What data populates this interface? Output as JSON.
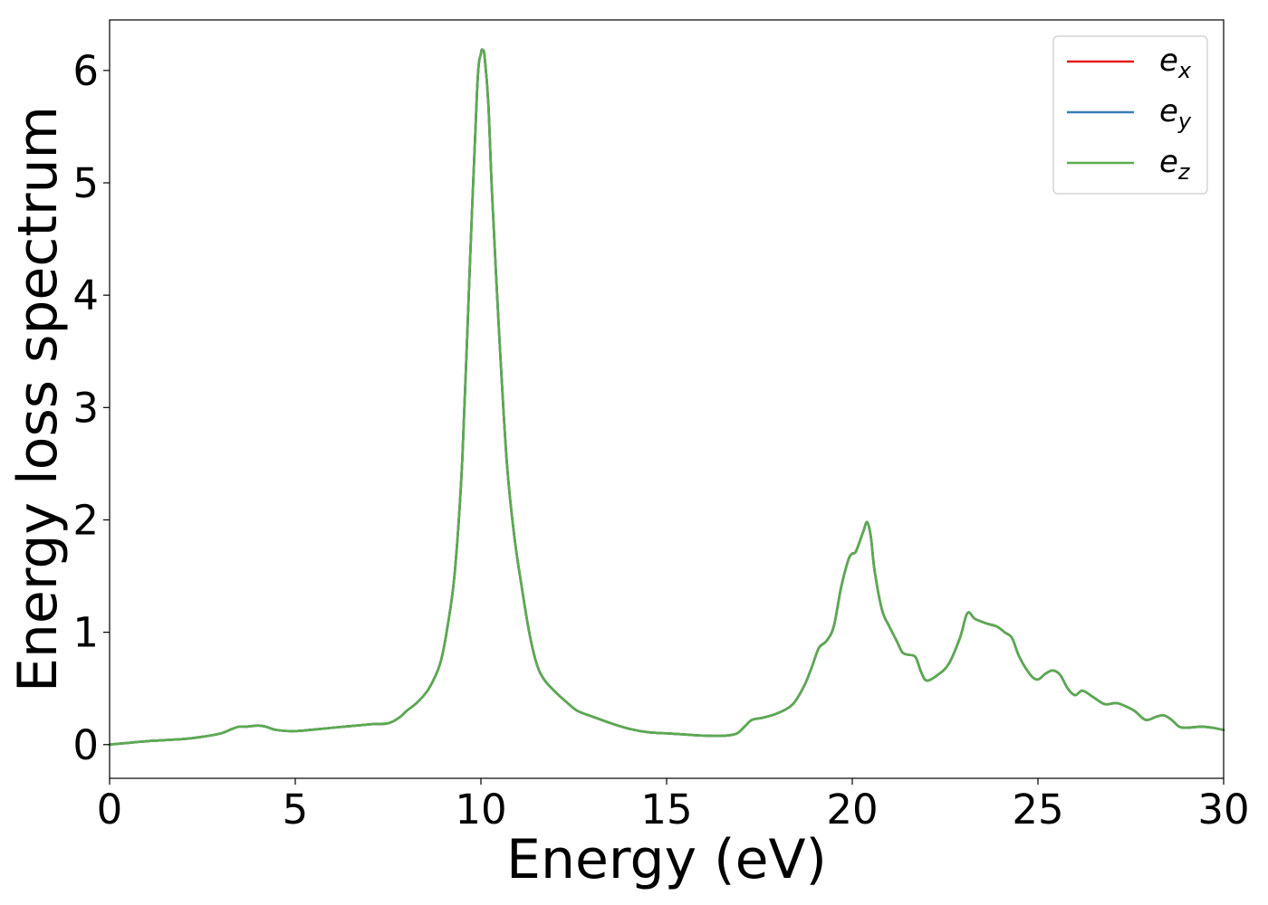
{
  "chart_data": {
    "type": "line",
    "title": "",
    "xlabel": "Energy (eV)",
    "ylabel": "Energy loss spectrum",
    "xlim": [
      0,
      30
    ],
    "ylim": [
      -0.3,
      6.45
    ],
    "xticks": [
      0,
      5,
      10,
      15,
      20,
      25,
      30
    ],
    "yticks": [
      0,
      1,
      2,
      3,
      4,
      5,
      6
    ],
    "grid": false,
    "legend_position": "top-right",
    "series": [
      {
        "name": "e_x",
        "legend_base": "e",
        "legend_sub": "x",
        "color": "#e41a1c",
        "x": [
          0,
          1,
          2,
          2.5,
          3,
          3.3,
          3.5,
          3.7,
          4.0,
          4.2,
          4.5,
          5.0,
          6.0,
          7.0,
          7.5,
          7.8,
          8.0,
          8.3,
          8.6,
          8.9,
          9.1,
          9.3,
          9.5,
          9.7,
          9.9,
          10.0,
          10.05,
          10.1,
          10.2,
          10.3,
          10.5,
          10.7,
          10.9,
          11.1,
          11.3,
          11.5,
          11.7,
          12.0,
          12.3,
          12.6,
          13.0,
          13.5,
          14.0,
          14.5,
          15.0,
          16.0,
          16.6,
          16.9,
          17.1,
          17.3,
          17.6,
          18.0,
          18.4,
          18.7,
          18.9,
          19.1,
          19.3,
          19.5,
          19.7,
          19.9,
          20.0,
          20.1,
          20.3,
          20.4,
          20.5,
          20.6,
          20.8,
          21.0,
          21.2,
          21.35,
          21.5,
          21.7,
          21.85,
          22.0,
          22.3,
          22.6,
          22.9,
          23.1,
          23.3,
          23.6,
          23.9,
          24.1,
          24.3,
          24.5,
          24.8,
          25.0,
          25.2,
          25.4,
          25.6,
          25.8,
          26.0,
          26.2,
          26.5,
          26.8,
          27.1,
          27.3,
          27.6,
          27.9,
          28.2,
          28.4,
          28.6,
          28.8,
          29.0,
          29.4,
          29.7,
          30.0
        ],
        "y": [
          0.0,
          0.03,
          0.05,
          0.07,
          0.1,
          0.14,
          0.16,
          0.16,
          0.17,
          0.16,
          0.13,
          0.12,
          0.15,
          0.18,
          0.19,
          0.24,
          0.3,
          0.38,
          0.5,
          0.72,
          1.05,
          1.55,
          2.55,
          4.25,
          5.85,
          6.15,
          6.18,
          6.12,
          5.7,
          4.9,
          3.6,
          2.5,
          1.85,
          1.4,
          1.0,
          0.72,
          0.58,
          0.47,
          0.38,
          0.3,
          0.25,
          0.19,
          0.14,
          0.11,
          0.1,
          0.08,
          0.08,
          0.1,
          0.16,
          0.22,
          0.24,
          0.28,
          0.36,
          0.52,
          0.68,
          0.86,
          0.92,
          1.05,
          1.4,
          1.65,
          1.7,
          1.72,
          1.9,
          1.98,
          1.85,
          1.55,
          1.2,
          1.05,
          0.92,
          0.82,
          0.8,
          0.78,
          0.65,
          0.57,
          0.62,
          0.72,
          0.95,
          1.17,
          1.12,
          1.08,
          1.05,
          1.0,
          0.95,
          0.78,
          0.62,
          0.58,
          0.63,
          0.66,
          0.62,
          0.5,
          0.44,
          0.48,
          0.42,
          0.36,
          0.37,
          0.35,
          0.3,
          0.22,
          0.25,
          0.26,
          0.22,
          0.16,
          0.15,
          0.16,
          0.15,
          0.13
        ]
      },
      {
        "name": "e_y",
        "legend_base": "e",
        "legend_sub": "y",
        "color": "#377eb8",
        "x": [
          0,
          1,
          2,
          2.5,
          3,
          3.3,
          3.5,
          3.7,
          4.0,
          4.2,
          4.5,
          5.0,
          6.0,
          7.0,
          7.5,
          7.8,
          8.0,
          8.3,
          8.6,
          8.9,
          9.1,
          9.3,
          9.5,
          9.7,
          9.9,
          10.0,
          10.05,
          10.1,
          10.2,
          10.3,
          10.5,
          10.7,
          10.9,
          11.1,
          11.3,
          11.5,
          11.7,
          12.0,
          12.3,
          12.6,
          13.0,
          13.5,
          14.0,
          14.5,
          15.0,
          16.0,
          16.6,
          16.9,
          17.1,
          17.3,
          17.6,
          18.0,
          18.4,
          18.7,
          18.9,
          19.1,
          19.3,
          19.5,
          19.7,
          19.9,
          20.0,
          20.1,
          20.3,
          20.4,
          20.5,
          20.6,
          20.8,
          21.0,
          21.2,
          21.35,
          21.5,
          21.7,
          21.85,
          22.0,
          22.3,
          22.6,
          22.9,
          23.1,
          23.3,
          23.6,
          23.9,
          24.1,
          24.3,
          24.5,
          24.8,
          25.0,
          25.2,
          25.4,
          25.6,
          25.8,
          26.0,
          26.2,
          26.5,
          26.8,
          27.1,
          27.3,
          27.6,
          27.9,
          28.2,
          28.4,
          28.6,
          28.8,
          29.0,
          29.4,
          29.7,
          30.0
        ],
        "y": [
          0.0,
          0.03,
          0.05,
          0.07,
          0.1,
          0.14,
          0.16,
          0.16,
          0.17,
          0.16,
          0.13,
          0.12,
          0.15,
          0.18,
          0.19,
          0.24,
          0.3,
          0.38,
          0.5,
          0.72,
          1.05,
          1.55,
          2.55,
          4.25,
          5.85,
          6.15,
          6.18,
          6.12,
          5.7,
          4.9,
          3.6,
          2.5,
          1.85,
          1.4,
          1.0,
          0.72,
          0.58,
          0.47,
          0.38,
          0.3,
          0.25,
          0.19,
          0.14,
          0.11,
          0.1,
          0.08,
          0.08,
          0.1,
          0.16,
          0.22,
          0.24,
          0.28,
          0.36,
          0.52,
          0.68,
          0.86,
          0.92,
          1.05,
          1.4,
          1.65,
          1.7,
          1.72,
          1.9,
          1.98,
          1.85,
          1.55,
          1.2,
          1.05,
          0.92,
          0.82,
          0.8,
          0.78,
          0.65,
          0.57,
          0.62,
          0.72,
          0.95,
          1.17,
          1.12,
          1.08,
          1.05,
          1.0,
          0.95,
          0.78,
          0.62,
          0.58,
          0.63,
          0.66,
          0.62,
          0.5,
          0.44,
          0.48,
          0.42,
          0.36,
          0.37,
          0.35,
          0.3,
          0.22,
          0.25,
          0.26,
          0.22,
          0.16,
          0.15,
          0.16,
          0.15,
          0.13
        ]
      },
      {
        "name": "e_z",
        "legend_base": "e",
        "legend_sub": "z",
        "color": "#5aab4f",
        "x": [
          0,
          1,
          2,
          2.5,
          3,
          3.3,
          3.5,
          3.7,
          4.0,
          4.2,
          4.5,
          5.0,
          6.0,
          7.0,
          7.5,
          7.8,
          8.0,
          8.3,
          8.6,
          8.9,
          9.1,
          9.3,
          9.5,
          9.7,
          9.9,
          10.0,
          10.05,
          10.1,
          10.2,
          10.3,
          10.5,
          10.7,
          10.9,
          11.1,
          11.3,
          11.5,
          11.7,
          12.0,
          12.3,
          12.6,
          13.0,
          13.5,
          14.0,
          14.5,
          15.0,
          16.0,
          16.6,
          16.9,
          17.1,
          17.3,
          17.6,
          18.0,
          18.4,
          18.7,
          18.9,
          19.1,
          19.3,
          19.5,
          19.7,
          19.9,
          20.0,
          20.1,
          20.3,
          20.4,
          20.5,
          20.6,
          20.8,
          21.0,
          21.2,
          21.35,
          21.5,
          21.7,
          21.85,
          22.0,
          22.3,
          22.6,
          22.9,
          23.1,
          23.3,
          23.6,
          23.9,
          24.1,
          24.3,
          24.5,
          24.8,
          25.0,
          25.2,
          25.4,
          25.6,
          25.8,
          26.0,
          26.2,
          26.5,
          26.8,
          27.1,
          27.3,
          27.6,
          27.9,
          28.2,
          28.4,
          28.6,
          28.8,
          29.0,
          29.4,
          29.7,
          30.0
        ],
        "y": [
          0.0,
          0.03,
          0.05,
          0.07,
          0.1,
          0.14,
          0.16,
          0.16,
          0.17,
          0.16,
          0.13,
          0.12,
          0.15,
          0.18,
          0.19,
          0.24,
          0.3,
          0.38,
          0.5,
          0.72,
          1.05,
          1.55,
          2.55,
          4.25,
          5.85,
          6.15,
          6.18,
          6.12,
          5.7,
          4.9,
          3.6,
          2.5,
          1.85,
          1.4,
          1.0,
          0.72,
          0.58,
          0.47,
          0.38,
          0.3,
          0.25,
          0.19,
          0.14,
          0.11,
          0.1,
          0.08,
          0.08,
          0.1,
          0.16,
          0.22,
          0.24,
          0.28,
          0.36,
          0.52,
          0.68,
          0.86,
          0.92,
          1.05,
          1.4,
          1.65,
          1.7,
          1.72,
          1.9,
          1.98,
          1.85,
          1.55,
          1.2,
          1.05,
          0.92,
          0.82,
          0.8,
          0.78,
          0.65,
          0.57,
          0.62,
          0.72,
          0.95,
          1.17,
          1.12,
          1.08,
          1.05,
          1.0,
          0.95,
          0.78,
          0.62,
          0.58,
          0.63,
          0.66,
          0.62,
          0.5,
          0.44,
          0.48,
          0.42,
          0.36,
          0.37,
          0.35,
          0.3,
          0.22,
          0.25,
          0.26,
          0.22,
          0.16,
          0.15,
          0.16,
          0.15,
          0.13
        ]
      }
    ]
  }
}
